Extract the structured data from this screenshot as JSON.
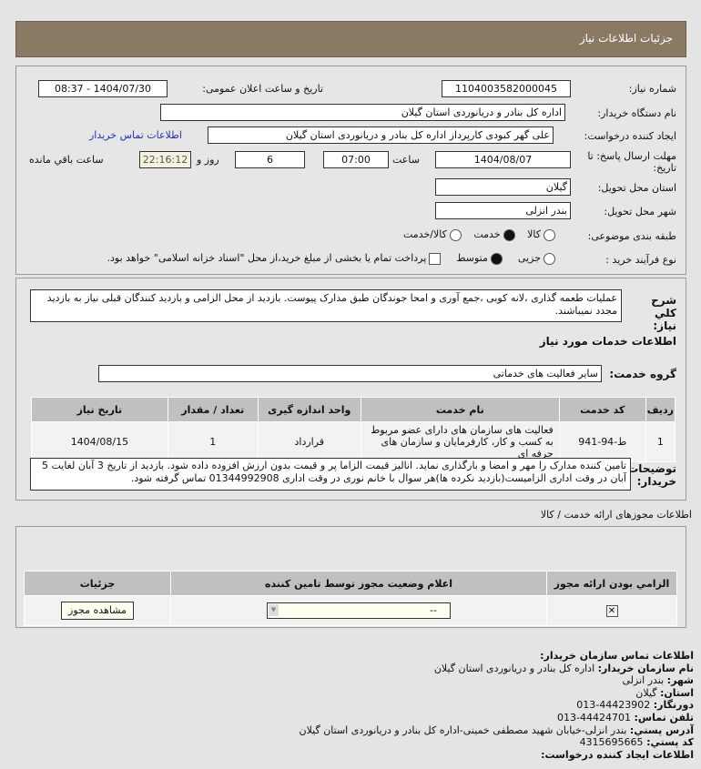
{
  "header": {
    "title": "جزئیات اطلاعات نیاز"
  },
  "form": {
    "need_number_label": "شماره نیاز:",
    "need_number": "1104003582000045",
    "announce_label": "تاریخ و ساعت اعلان عمومی:",
    "announce_value": "1404/07/30 - 08:37",
    "buyer_org_label": "نام دستگاه خریدار:",
    "buyer_org": "اداره کل بنادر و دریانوردی استان گیلان",
    "creator_label": "ایجاد کننده درخواست:",
    "creator": "علی  گهر کبودی کارپرداز اداره کل بنادر و دریانوردی استان گیلان",
    "contact_link": "اطلاعات تماس خریدار",
    "deadline_label": "مهلت ارسال پاسخ: تا تاریخ:",
    "deadline_date": "1404/08/07",
    "time_label": "ساعت",
    "deadline_time": "07:00",
    "days": "6",
    "days_label": "روز و",
    "remaining": "22:16:12",
    "remaining_label": "ساعت باقي مانده",
    "province_label": "استان محل تحویل:",
    "province": "گیلان",
    "city_label": "شهر محل تحویل:",
    "city": "بندر انزلی",
    "category_label": "طبقه بندی موضوعی:",
    "category_options": [
      "کالا",
      "خدمت",
      "کالا/خدمت"
    ],
    "category_selected": "خدمت",
    "process_label": "نوع فرآیند خرید :",
    "process_options": [
      "جزیی",
      "متوسط"
    ],
    "process_selected": "متوسط",
    "payment_note": "پرداخت تمام یا بخشی از مبلغ خرید،از محل \"اسناد خزانه اسلامی\" خواهد بود."
  },
  "description": {
    "label": "شرح کلي نیاز:",
    "text": "عملیات طعمه گذاری ،لانه کوبی ،جمع آوری و امحا جوندگان طبق مدارک پیوست. بازدید از محل الزامی و بازدید کنندگان قبلی نیاز به بازدید مجدد نمیباشند."
  },
  "services": {
    "title": "اطلاعات خدمات مورد نیاز",
    "group_label": "گروه خدمت:",
    "group": "سایر فعالیت های خدماتی",
    "columns": [
      "ردیف",
      "کد خدمت",
      "نام خدمت",
      "واحد اندازه گیری",
      "تعداد / مقدار",
      "تاریخ نیاز"
    ],
    "rows": [
      [
        "1",
        "ط-94-941",
        "فعالیت های سازمان های دارای عضو مربوط به کسب و کار، کارفرمایان و سازمان های حرفه ای",
        "قرارداد",
        "1",
        "1404/08/15"
      ]
    ]
  },
  "buyer_notes": {
    "label": "توضیحات خریدار:",
    "text": "تامین کننده مدارک را مهر و امضا و بارگذاری نماید. انالیز قیمت الزاما پر و قیمت بدون ارزش افزوده داده شود. بازدید از تاریخ 3 آبان لغایت 5 آبان در وقت اداری الزامیست(بازدید نکرده ها)هر سوال با خانم نوری در وقت اداری 01344992908 تماس گرفته شود."
  },
  "permits": {
    "title": "اطلاعات مجوزهای ارائه خدمت / کالا",
    "columns": [
      "الزامي بودن ارائه مجوز",
      "اعلام وضعیت مجوز توسط تامین کننده",
      "جزئیات"
    ],
    "select_value": "--",
    "view_button": "مشاهده مجوز"
  },
  "contact": {
    "title": "اطلاعات تماس سازمان خریدار:",
    "org_label": "نام سازمان خریدار:",
    "org": "اداره کل بنادر و دریانوردی استان گیلان",
    "city_label": "شهر:",
    "city": "بندر انزلی",
    "province_label": "استان:",
    "province": "گیلان",
    "fax_label": "دورنگار:",
    "fax": "44423902-013",
    "phone_label": "تلفن تماس:",
    "phone": "44424701-013",
    "address_label": "آدرس پستي:",
    "address": "بندر انزلی-خیابان شهید مصطفی خمینی-اداره کل بنادر و دریانوردی استان گیلان",
    "postal_label": "کد پستي:",
    "postal": "4315695665",
    "creator_title": "اطلاعات ایجاد کننده درخواست:"
  }
}
